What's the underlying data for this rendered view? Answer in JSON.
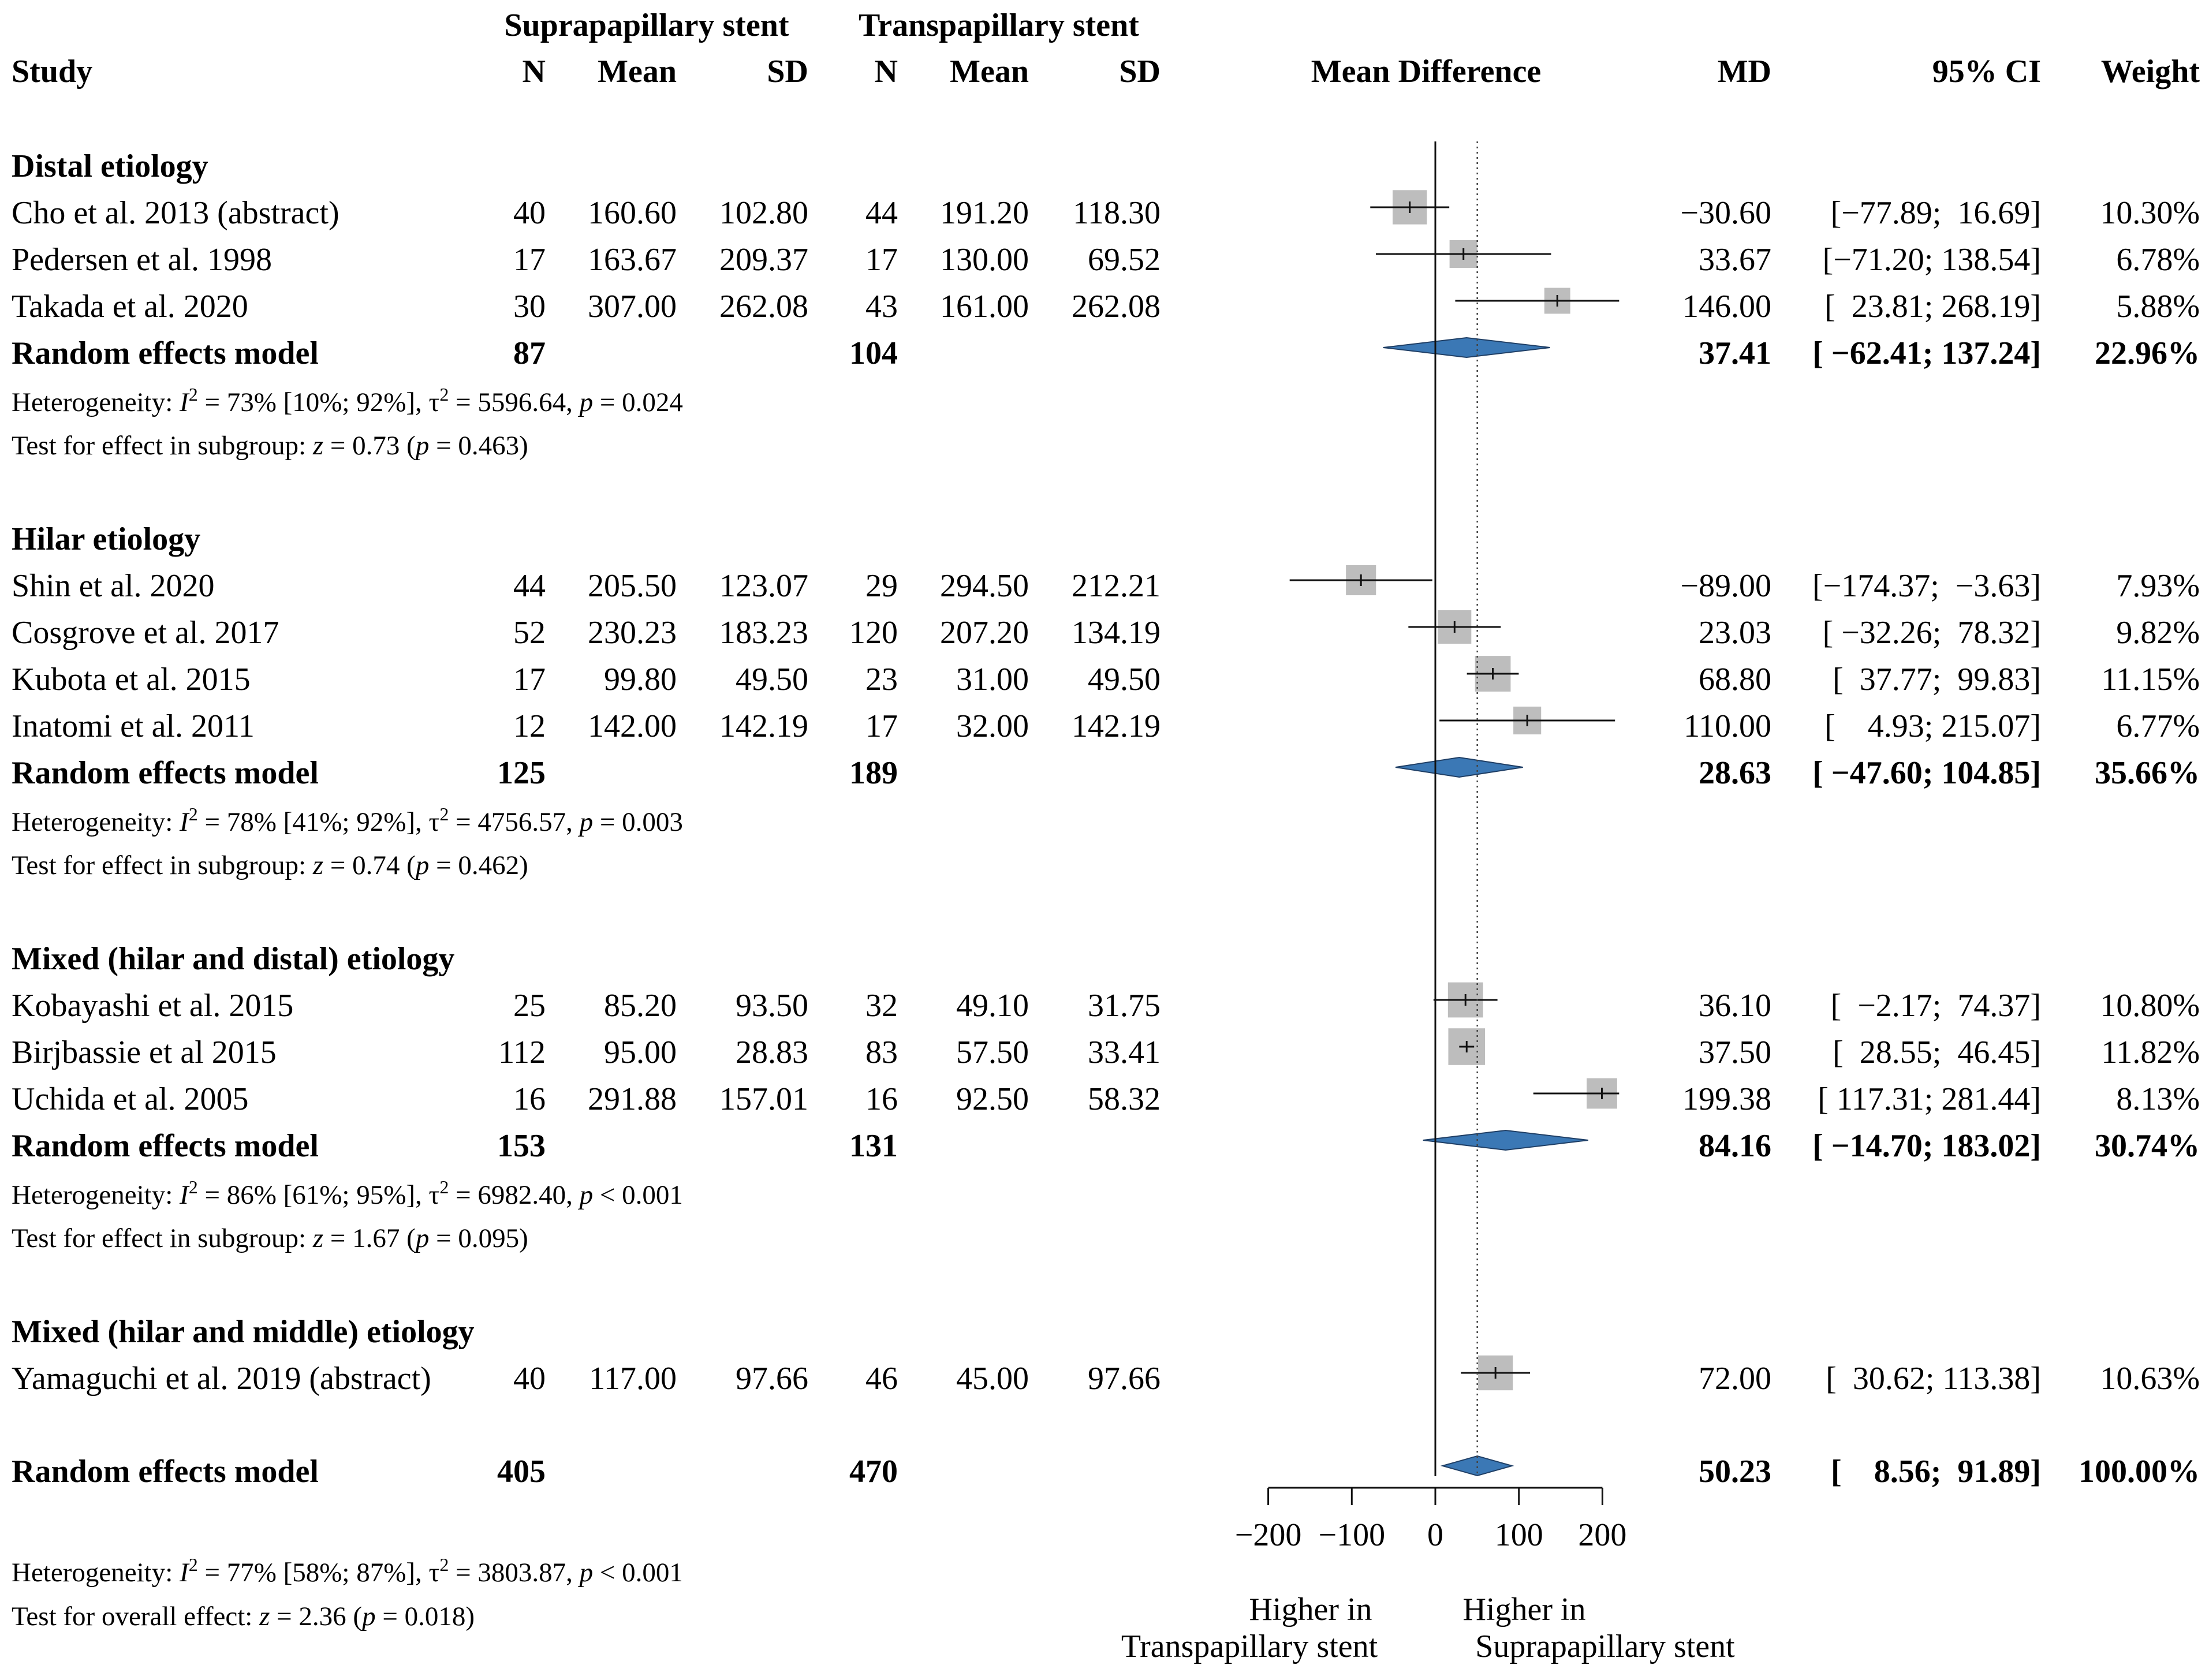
{
  "chart_data": {
    "type": "forest",
    "title": "",
    "xlabel": "Mean Difference",
    "xlim": [
      -200,
      200
    ],
    "xticks": [
      -200,
      -100,
      0,
      100,
      200
    ],
    "xtick_labels": [
      "−200",
      "−100",
      "0",
      "100",
      "200"
    ],
    "overall_reference_line": 50.23,
    "left_direction_label": [
      "Higher in",
      "Transpapillary stent"
    ],
    "right_direction_label": [
      "Higher in",
      "Suprapapillary stent"
    ],
    "group_headers": [
      "Suprapapillary stent",
      "Transpapillary stent"
    ],
    "column_headers": {
      "study": "Study",
      "n1": "N",
      "mean1": "Mean",
      "sd1": "SD",
      "n2": "N",
      "mean2": "Mean",
      "sd2": "SD",
      "plot": "Mean Difference",
      "md": "MD",
      "ci": "95% CI",
      "weight": "Weight"
    },
    "subgroups": [
      {
        "name": "Distal etiology",
        "studies": [
          {
            "study": "Cho et al. 2013 (abstract)",
            "n1": "40",
            "mean1": "160.60",
            "sd1": "102.80",
            "n2": "44",
            "mean2": "191.20",
            "sd2": "118.30",
            "md": -30.6,
            "lo": -77.89,
            "hi": 16.69,
            "md_text": "−30.60",
            "ci_text": "[−77.89;  16.69]",
            "weight": "10.30%",
            "w": 10.3
          },
          {
            "study": "Pedersen et al. 1998",
            "n1": "17",
            "mean1": "163.67",
            "sd1": "209.37",
            "n2": "17",
            "mean2": "130.00",
            "sd2": "69.52",
            "md": 33.67,
            "lo": -71.2,
            "hi": 138.54,
            "md_text": "33.67",
            "ci_text": "[−71.20; 138.54]",
            "weight": "6.78%",
            "w": 6.78
          },
          {
            "study": "Takada et al. 2020",
            "n1": "30",
            "mean1": "307.00",
            "sd1": "262.08",
            "n2": "43",
            "mean2": "161.00",
            "sd2": "262.08",
            "md": 146.0,
            "lo": 23.81,
            "hi": 268.19,
            "md_text": "146.00",
            "ci_text": "[  23.81; 268.19]",
            "weight": "5.88%",
            "w": 5.88
          }
        ],
        "pooled": {
          "label": "Random effects model",
          "n1": "87",
          "n2": "104",
          "md": 37.41,
          "lo": -62.41,
          "hi": 137.24,
          "md_text": "37.41",
          "ci_text": "[ −62.41; 137.24]",
          "weight": "22.96%"
        },
        "heterogeneity": {
          "prefix": "Heterogeneity: ",
          "I": "I",
          "sq": "2",
          "i2_tail": " = 73% [10%; 92%], τ",
          "tau_tail": " = 5596.64, ",
          "p": "p",
          "p_tail": " = 0.024"
        },
        "test": {
          "prefix": "Test for effect in subgroup: ",
          "z": "z",
          "z_tail": " = 0.73 (",
          "p": "p",
          "p_tail": " = 0.463)"
        }
      },
      {
        "name": "Hilar etiology",
        "studies": [
          {
            "study": "Shin et al. 2020",
            "n1": "44",
            "mean1": "205.50",
            "sd1": "123.07",
            "n2": "29",
            "mean2": "294.50",
            "sd2": "212.21",
            "md": -89.0,
            "lo": -174.37,
            "hi": -3.63,
            "md_text": "−89.00",
            "ci_text": "[−174.37;  −3.63]",
            "weight": "7.93%",
            "w": 7.93
          },
          {
            "study": "Cosgrove et al. 2017",
            "n1": "52",
            "mean1": "230.23",
            "sd1": "183.23",
            "n2": "120",
            "mean2": "207.20",
            "sd2": "134.19",
            "md": 23.03,
            "lo": -32.26,
            "hi": 78.32,
            "md_text": "23.03",
            "ci_text": "[ −32.26;  78.32]",
            "weight": "9.82%",
            "w": 9.82
          },
          {
            "study": "Kubota et al. 2015",
            "n1": "17",
            "mean1": "99.80",
            "sd1": "49.50",
            "n2": "23",
            "mean2": "31.00",
            "sd2": "49.50",
            "md": 68.8,
            "lo": 37.77,
            "hi": 99.83,
            "md_text": "68.80",
            "ci_text": "[  37.77;  99.83]",
            "weight": "11.15%",
            "w": 11.15
          },
          {
            "study": "Inatomi et al. 2011",
            "n1": "12",
            "mean1": "142.00",
            "sd1": "142.19",
            "n2": "17",
            "mean2": "32.00",
            "sd2": "142.19",
            "md": 110.0,
            "lo": 4.93,
            "hi": 215.07,
            "md_text": "110.00",
            "ci_text": "[    4.93; 215.07]",
            "weight": "6.77%",
            "w": 6.77
          }
        ],
        "pooled": {
          "label": "Random effects model",
          "n1": "125",
          "n2": "189",
          "md": 28.63,
          "lo": -47.6,
          "hi": 104.85,
          "md_text": "28.63",
          "ci_text": "[ −47.60; 104.85]",
          "weight": "35.66%"
        },
        "heterogeneity": {
          "prefix": "Heterogeneity: ",
          "I": "I",
          "sq": "2",
          "i2_tail": " = 78% [41%; 92%], τ",
          "tau_tail": " = 4756.57, ",
          "p": "p",
          "p_tail": " = 0.003"
        },
        "test": {
          "prefix": "Test for effect in subgroup: ",
          "z": "z",
          "z_tail": " = 0.74 (",
          "p": "p",
          "p_tail": " = 0.462)"
        }
      },
      {
        "name": "Mixed (hilar and distal) etiology",
        "studies": [
          {
            "study": "Kobayashi et al. 2015",
            "n1": "25",
            "mean1": "85.20",
            "sd1": "93.50",
            "n2": "32",
            "mean2": "49.10",
            "sd2": "31.75",
            "md": 36.1,
            "lo": -2.17,
            "hi": 74.37,
            "md_text": "36.10",
            "ci_text": "[  −2.17;  74.37]",
            "weight": "10.80%",
            "w": 10.8
          },
          {
            "study": "Birjbassie et al 2015",
            "n1": "112",
            "mean1": "95.00",
            "sd1": "28.83",
            "n2": "83",
            "mean2": "57.50",
            "sd2": "33.41",
            "md": 37.5,
            "lo": 28.55,
            "hi": 46.45,
            "md_text": "37.50",
            "ci_text": "[  28.55;  46.45]",
            "weight": "11.82%",
            "w": 11.82
          },
          {
            "study": "Uchida et al. 2005",
            "n1": "16",
            "mean1": "291.88",
            "sd1": "157.01",
            "n2": "16",
            "mean2": "92.50",
            "sd2": "58.32",
            "md": 199.38,
            "lo": 117.31,
            "hi": 281.44,
            "md_text": "199.38",
            "ci_text": "[ 117.31; 281.44]",
            "weight": "8.13%",
            "w": 8.13
          }
        ],
        "pooled": {
          "label": "Random effects model",
          "n1": "153",
          "n2": "131",
          "md": 84.16,
          "lo": -14.7,
          "hi": 183.02,
          "md_text": "84.16",
          "ci_text": "[ −14.70; 183.02]",
          "weight": "30.74%"
        },
        "heterogeneity": {
          "prefix": "Heterogeneity: ",
          "I": "I",
          "sq": "2",
          "i2_tail": " = 86% [61%; 95%], τ",
          "tau_tail": " = 6982.40, ",
          "p": "p",
          "p_tail": " < 0.001"
        },
        "test": {
          "prefix": "Test for effect in subgroup: ",
          "z": "z",
          "z_tail": " = 1.67 (",
          "p": "p",
          "p_tail": " = 0.095)"
        }
      },
      {
        "name": "Mixed (hilar and middle) etiology",
        "studies": [
          {
            "study": "Yamaguchi et al. 2019 (abstract)",
            "n1": "40",
            "mean1": "117.00",
            "sd1": "97.66",
            "n2": "46",
            "mean2": "45.00",
            "sd2": "97.66",
            "md": 72.0,
            "lo": 30.62,
            "hi": 113.38,
            "md_text": "72.00",
            "ci_text": "[  30.62; 113.38]",
            "weight": "10.63%",
            "w": 10.63
          }
        ],
        "pooled": null,
        "heterogeneity": null,
        "test": null
      }
    ],
    "overall": {
      "label": "Random effects model",
      "n1": "405",
      "n2": "470",
      "md": 50.23,
      "lo": 8.56,
      "hi": 91.89,
      "md_text": "50.23",
      "ci_text": "[    8.56;  91.89]",
      "weight": "100.00%",
      "heterogeneity": {
        "prefix": "Heterogeneity: ",
        "I": "I",
        "sq": "2",
        "i2_tail": " = 77% [58%; 87%], τ",
        "tau_tail": " = 3803.87, ",
        "p": "p",
        "p_tail": " < 0.001"
      },
      "test": {
        "prefix": "Test for overall effect: ",
        "z": "z",
        "z_tail": " = 2.36 (",
        "p": "p",
        "p_tail": " = 0.018)"
      }
    },
    "colors": {
      "diamond_fill": "#3b78b5",
      "diamond_stroke": "#1f3f66",
      "square": "#bdbdbd",
      "text": "#111111",
      "line": "#111111"
    }
  }
}
